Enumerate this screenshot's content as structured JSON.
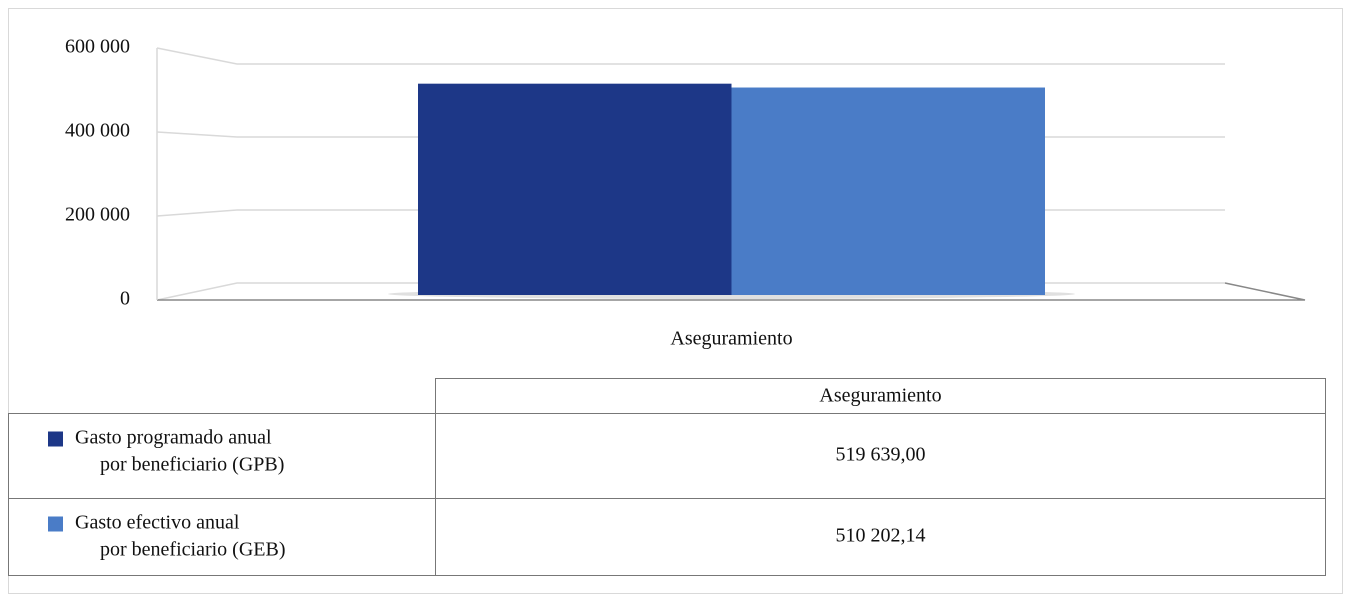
{
  "chart_data": {
    "type": "bar",
    "categories": [
      "Aseguramiento"
    ],
    "series": [
      {
        "name": "Gasto programado anual por beneficiario (GPB)",
        "color": "#1d3787",
        "values": [
          519639.0
        ],
        "value_labels": [
          "519 639,00"
        ]
      },
      {
        "name": "Gasto efectivo anual por beneficiario (GEB)",
        "color": "#4a7cc7",
        "values": [
          510202.14
        ],
        "value_labels": [
          "510 202,14"
        ]
      }
    ],
    "ylim": [
      0,
      600000
    ],
    "yticks": [
      0,
      {
        "value": 200000,
        "label": "200 000"
      },
      {
        "value": 400000,
        "label": "400 000"
      },
      {
        "value": 600000,
        "label": "600 000"
      }
    ],
    "grid": true,
    "data_table": true
  }
}
